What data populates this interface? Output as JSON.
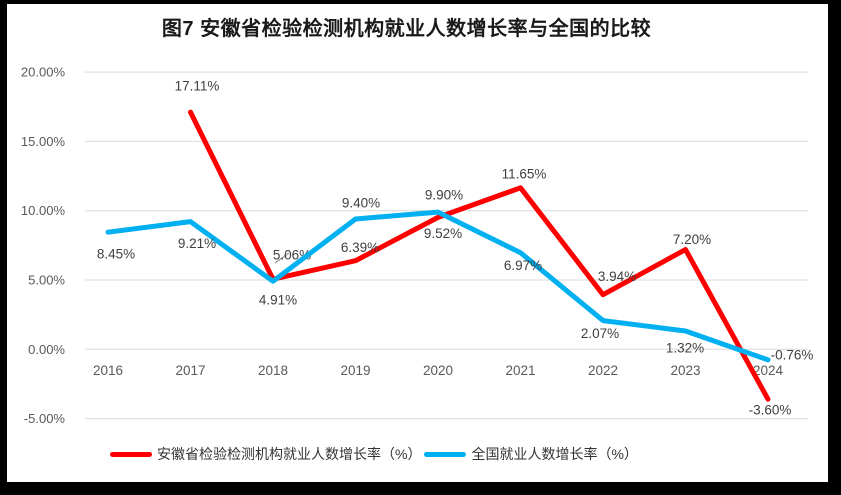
{
  "chart_data": {
    "type": "line",
    "title": "图7 安徽省检验检测机构就业人数增长率与全国的比较",
    "categories": [
      "2016",
      "2017",
      "2018",
      "2019",
      "2020",
      "2021",
      "2022",
      "2023",
      "2024"
    ],
    "series": [
      {
        "name": "安徽省检验检测机构就业人数增长率（%）",
        "color": "#fe0000",
        "values": [
          null,
          17.11,
          5.06,
          6.39,
          9.52,
          11.65,
          3.94,
          7.2,
          -3.6
        ]
      },
      {
        "name": "全国就业人数增长率（%）",
        "color": "#00b0f0",
        "values": [
          8.45,
          9.21,
          4.91,
          9.4,
          9.9,
          6.97,
          2.07,
          1.32,
          -0.76
        ]
      }
    ],
    "ylim": [
      -5,
      20
    ],
    "ytick_step": 5,
    "ytick_labels": [
      "20.00%",
      "15.00%",
      "10.00%",
      "5.00%",
      "0.00%",
      "-5.00%"
    ],
    "xlabel": "",
    "ylabel": "",
    "grid": true,
    "legend_position": "bottom",
    "colors": {
      "grid": "#d9d9d9",
      "axis_text": "#595959",
      "data_label": "#404040",
      "title": "#1a1a1a",
      "leader_line": "#a6a6a6"
    }
  }
}
